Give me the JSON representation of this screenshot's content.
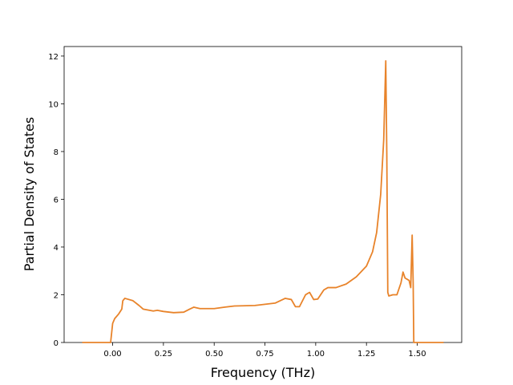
{
  "chart_data": {
    "type": "line",
    "x_label": "Frequency (THz)",
    "y_label": "Partial Density of States",
    "x": [
      -0.15,
      -0.01,
      0.0,
      0.01,
      0.03,
      0.045,
      0.05,
      0.06,
      0.1,
      0.13,
      0.15,
      0.2,
      0.22,
      0.25,
      0.3,
      0.35,
      0.38,
      0.4,
      0.43,
      0.5,
      0.55,
      0.6,
      0.7,
      0.75,
      0.8,
      0.85,
      0.88,
      0.9,
      0.92,
      0.95,
      0.97,
      0.99,
      1.01,
      1.04,
      1.06,
      1.1,
      1.15,
      1.2,
      1.25,
      1.28,
      1.3,
      1.32,
      1.335,
      1.345,
      1.35,
      1.355,
      1.36,
      1.38,
      1.4,
      1.42,
      1.43,
      1.44,
      1.46,
      1.468,
      1.475,
      1.48,
      1.483,
      1.63
    ],
    "series": [
      {
        "color": "#e8832a",
        "values": [
          0,
          0,
          0.8,
          1.0,
          1.2,
          1.4,
          1.75,
          1.85,
          1.75,
          1.55,
          1.4,
          1.32,
          1.35,
          1.3,
          1.25,
          1.27,
          1.4,
          1.48,
          1.42,
          1.42,
          1.48,
          1.53,
          1.55,
          1.6,
          1.65,
          1.85,
          1.8,
          1.5,
          1.5,
          2.0,
          2.1,
          1.8,
          1.82,
          2.2,
          2.3,
          2.3,
          2.45,
          2.75,
          3.2,
          3.8,
          4.6,
          6.2,
          8.5,
          11.8,
          8,
          2.1,
          1.95,
          2.0,
          2.0,
          2.5,
          2.95,
          2.7,
          2.6,
          2.3,
          4.5,
          2.5,
          0,
          0
        ]
      }
    ],
    "xlim": [
      -0.239,
      1.719
    ],
    "ylim": [
      0,
      12.4
    ],
    "xticks": [
      {
        "value": 0,
        "label": "0.00"
      },
      {
        "value": 0.25,
        "label": "0.25"
      },
      {
        "value": 0.5,
        "label": "0.50"
      },
      {
        "value": 0.75,
        "label": "0.75"
      },
      {
        "value": 1.0,
        "label": "1.00"
      },
      {
        "value": 1.25,
        "label": "1.25"
      },
      {
        "value": 1.5,
        "label": "1.50"
      }
    ],
    "yticks": [
      0,
      2,
      4,
      6,
      8,
      10,
      12
    ]
  }
}
